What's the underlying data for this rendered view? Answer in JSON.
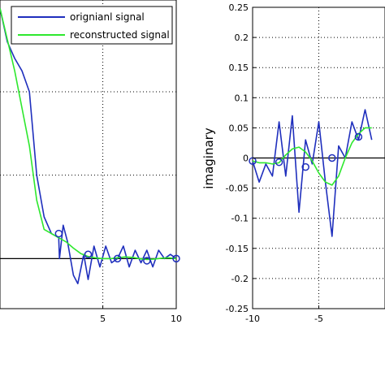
{
  "chart_data": [
    {
      "type": "line",
      "title": "",
      "xlabel": "",
      "ylabel": "",
      "xlim": [
        -2,
        10
      ],
      "ylim": [
        -0.12,
        0.62
      ],
      "x_ticks": [
        5,
        10
      ],
      "y_ticks": [],
      "grid": true,
      "legend_position": "top-right",
      "series": [
        {
          "name": "orignianl signal",
          "color": "#1f2fbd",
          "x": [
            -2,
            -1.5,
            -1.0,
            -0.5,
            0.0,
            0.5,
            1.0,
            1.5,
            2.0,
            2.05,
            2.3,
            2.6,
            3.0,
            3.3,
            3.7,
            4.0,
            4.4,
            4.8,
            5.2,
            5.6,
            6.0,
            6.4,
            6.8,
            7.2,
            7.6,
            8.0,
            8.4,
            8.8,
            9.2,
            9.6,
            10.0
          ],
          "y": [
            0.6,
            0.52,
            0.48,
            0.45,
            0.4,
            0.2,
            0.1,
            0.06,
            0.05,
            0.0,
            0.08,
            0.04,
            -0.04,
            -0.06,
            0.01,
            -0.05,
            0.03,
            -0.02,
            0.03,
            -0.01,
            0.0,
            0.03,
            -0.02,
            0.02,
            -0.01,
            0.02,
            -0.02,
            0.02,
            0.0,
            0.01,
            0.0
          ]
        },
        {
          "name": "reconstructed signal",
          "color": "#2ee82e",
          "x": [
            -2,
            -1,
            0,
            0.5,
            1,
            1.5,
            2,
            2.5,
            3,
            3.5,
            4,
            4.5,
            5,
            5.5,
            6,
            6.5,
            7,
            7.5,
            8,
            8.5,
            9,
            9.5,
            10
          ],
          "y": [
            0.6,
            0.45,
            0.27,
            0.14,
            0.07,
            0.06,
            0.05,
            0.04,
            0.025,
            0.012,
            0.005,
            0.002,
            0.0,
            0.0,
            0.002,
            0.004,
            0.003,
            0.0,
            -0.002,
            -0.001,
            0.001,
            0.002,
            0.0
          ]
        },
        {
          "name": "samples",
          "color": "#1f2fbd",
          "marker": "circle",
          "x": [
            2,
            4,
            6,
            8,
            10
          ],
          "y": [
            0.06,
            0.01,
            0.0,
            -0.005,
            0.0
          ]
        }
      ]
    },
    {
      "type": "line",
      "title": "",
      "xlabel": "",
      "ylabel": "imaginary",
      "xlim": [
        -10,
        0
      ],
      "ylim": [
        -0.25,
        0.25
      ],
      "x_ticks": [
        -10,
        -5
      ],
      "y_ticks": [
        -0.25,
        -0.2,
        -0.15,
        -0.1,
        -0.05,
        0,
        0.05,
        0.1,
        0.15,
        0.2,
        0.25
      ],
      "y_tick_labels": [
        "-0.25",
        "-0.2",
        "-0.15",
        "-0.1",
        "-0.05",
        "0",
        "0.05",
        "0.1",
        "0.15",
        "0.2",
        "0.25"
      ],
      "x_tick_labels": [
        "-10",
        "-5"
      ],
      "grid": true,
      "series": [
        {
          "name": "orignianl signal",
          "color": "#1f2fbd",
          "x": [
            -10,
            -9.5,
            -9.0,
            -8.5,
            -8.0,
            -7.5,
            -7.0,
            -6.5,
            -6.0,
            -5.5,
            -5.0,
            -4.5,
            -4.0,
            -3.5,
            -3.0,
            -2.5,
            -2.0,
            -1.5,
            -1.0
          ],
          "y": [
            -0.005,
            -0.04,
            -0.01,
            -0.03,
            0.06,
            -0.03,
            0.07,
            -0.09,
            0.03,
            -0.01,
            0.06,
            -0.04,
            -0.13,
            0.02,
            0.0,
            0.06,
            0.03,
            0.08,
            0.03
          ]
        },
        {
          "name": "reconstructed signal",
          "color": "#2ee82e",
          "x": [
            -10,
            -9.5,
            -9,
            -8.5,
            -8,
            -7.5,
            -7,
            -6.5,
            -6,
            -5.5,
            -5,
            -4.5,
            -4,
            -3.5,
            -3,
            -2.5,
            -2,
            -1.5,
            -1
          ],
          "y": [
            -0.005,
            -0.008,
            -0.008,
            -0.01,
            -0.008,
            0.005,
            0.015,
            0.018,
            0.01,
            -0.005,
            -0.025,
            -0.04,
            -0.045,
            -0.03,
            0.0,
            0.025,
            0.04,
            0.05,
            0.05
          ]
        },
        {
          "name": "samples",
          "color": "#1f2fbd",
          "marker": "circle",
          "x": [
            -10,
            -8,
            -6,
            -4,
            -2
          ],
          "y": [
            -0.005,
            -0.007,
            -0.015,
            0.0,
            0.035
          ]
        }
      ]
    }
  ],
  "legend": {
    "items": [
      {
        "label": "orignianl signal",
        "color": "#1f2fbd"
      },
      {
        "label": "reconstructed signal",
        "color": "#2ee82e"
      }
    ]
  }
}
